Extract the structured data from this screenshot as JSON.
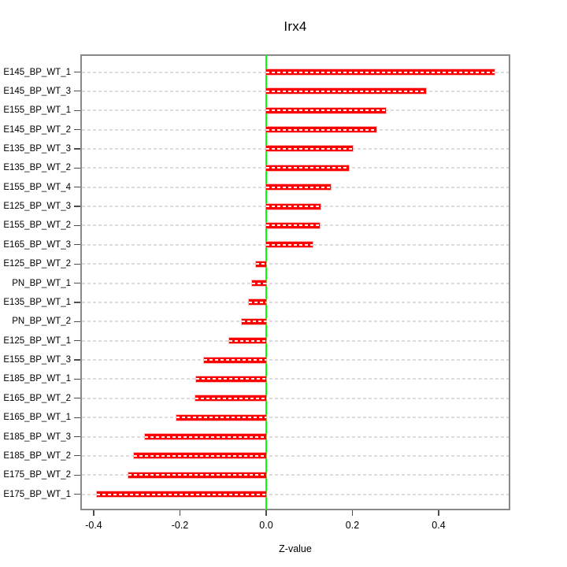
{
  "figure": {
    "title": "Irx4",
    "xlabel": "Z-value"
  },
  "chart_data": {
    "type": "bar",
    "orientation": "horizontal",
    "title": "Irx4",
    "xlabel": "Z-value",
    "ylabel": "",
    "legend": null,
    "grid": "horizontal-dashed-per-category",
    "categories": [
      "E145_BP_WT_1",
      "E145_BP_WT_3",
      "E155_BP_WT_1",
      "E145_BP_WT_2",
      "E135_BP_WT_3",
      "E135_BP_WT_2",
      "E155_BP_WT_4",
      "E125_BP_WT_3",
      "E155_BP_WT_2",
      "E165_BP_WT_3",
      "E125_BP_WT_2",
      "PN_BP_WT_1",
      "E135_BP_WT_1",
      "PN_BP_WT_2",
      "E125_BP_WT_1",
      "E155_BP_WT_3",
      "E185_BP_WT_1",
      "E165_BP_WT_2",
      "E165_BP_WT_1",
      "E185_BP_WT_3",
      "E185_BP_WT_2",
      "E175_BP_WT_2",
      "E175_BP_WT_1"
    ],
    "values": [
      0.53,
      0.37,
      0.277,
      0.256,
      0.201,
      0.191,
      0.15,
      0.126,
      0.124,
      0.108,
      -0.024,
      -0.032,
      -0.04,
      -0.056,
      -0.085,
      -0.144,
      -0.162,
      -0.165,
      -0.208,
      -0.281,
      -0.307,
      -0.319,
      -0.393
    ],
    "x_ticks": {
      "values": [
        -0.4,
        -0.2,
        0.0,
        0.2,
        0.4
      ],
      "labels": [
        "-0.4",
        "-0.2",
        "0.0",
        "0.2",
        "0.4"
      ]
    },
    "xlim": [
      -0.429,
      0.565
    ],
    "zero_line": 0.0,
    "colors": {
      "bar": "#ff0000",
      "bar_dash": "#ffffff",
      "zero_line": "#00ff00",
      "grid_dash": "#dcdcdc",
      "box_border": "#898989"
    }
  }
}
